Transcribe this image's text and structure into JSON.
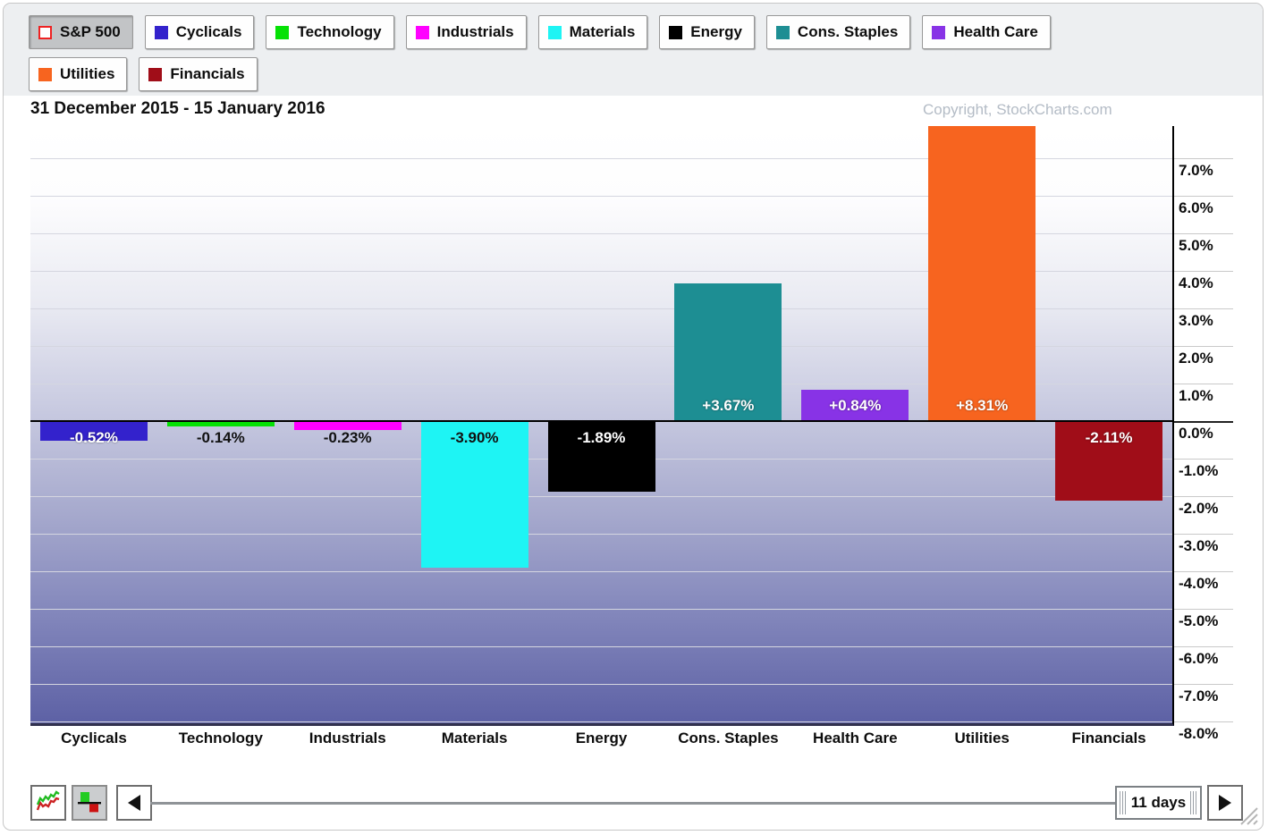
{
  "legend": {
    "rows": [
      [
        {
          "label": "S&P 500",
          "color": "#ffffff",
          "swatch_border": "#ee2222",
          "pressed": true
        },
        {
          "label": "Cyclicals",
          "color": "#3322cc",
          "pressed": false
        },
        {
          "label": "Technology",
          "color": "#05e105",
          "pressed": false
        },
        {
          "label": "Industrials",
          "color": "#ff00ff",
          "pressed": false
        },
        {
          "label": "Materials",
          "color": "#1ef4f4",
          "pressed": false
        },
        {
          "label": "Energy",
          "color": "#000000",
          "pressed": false
        },
        {
          "label": "Cons. Staples",
          "color": "#1d8e93",
          "pressed": false
        },
        {
          "label": "Health Care",
          "color": "#8833e6",
          "pressed": false
        }
      ],
      [
        {
          "label": "Utilities",
          "color": "#f7641f",
          "pressed": false
        },
        {
          "label": "Financials",
          "color": "#a00d18",
          "pressed": false
        }
      ]
    ]
  },
  "header": {
    "date_range": "31 December 2015 - 15 January 2016",
    "copyright": "Copyright, StockCharts.com"
  },
  "chart_data": {
    "type": "bar",
    "title": "31 December 2015 - 15 January 2016",
    "categories": [
      "Cyclicals",
      "Technology",
      "Industrials",
      "Materials",
      "Energy",
      "Cons. Staples",
      "Health Care",
      "Utilities",
      "Financials"
    ],
    "values": [
      -0.52,
      -0.14,
      -0.23,
      -3.9,
      -1.89,
      3.67,
      0.84,
      8.31,
      -2.11
    ],
    "bar_labels": [
      "-0.52%",
      "-0.14%",
      "-0.23%",
      "-3.90%",
      "-1.89%",
      "+3.67%",
      "+0.84%",
      "+8.31%",
      "-2.11%"
    ],
    "bar_colors": [
      "#3322cc",
      "#05e105",
      "#ff00ff",
      "#1ef4f4",
      "#000000",
      "#1d8e93",
      "#8833e6",
      "#f7641f",
      "#a00d18"
    ],
    "label_colors": [
      "#ffffff",
      "#111111",
      "#111111",
      "#111111",
      "#ffffff",
      "#ffffff",
      "#ffffff",
      "#ffffff",
      "#ffffff"
    ],
    "yticks": [
      {
        "pct": 7,
        "label": "7.0%"
      },
      {
        "pct": 6,
        "label": "6.0%"
      },
      {
        "pct": 5,
        "label": "5.0%"
      },
      {
        "pct": 4,
        "label": "4.0%"
      },
      {
        "pct": 3,
        "label": "3.0%"
      },
      {
        "pct": 2,
        "label": "2.0%"
      },
      {
        "pct": 1,
        "label": "1.0%"
      },
      {
        "pct": 0,
        "label": "0.0%"
      },
      {
        "pct": -1,
        "label": "-1.0%"
      },
      {
        "pct": -2,
        "label": "-2.0%"
      },
      {
        "pct": -3,
        "label": "-3.0%"
      },
      {
        "pct": -4,
        "label": "-4.0%"
      },
      {
        "pct": -5,
        "label": "-5.0%"
      },
      {
        "pct": -6,
        "label": "-6.0%"
      },
      {
        "pct": -7,
        "label": "-7.0%"
      },
      {
        "pct": -8,
        "label": "-8.0%"
      }
    ],
    "ylim": [
      -8.1,
      7.9
    ],
    "grid": true,
    "legend_position": "top",
    "axis_side": "right",
    "note_clipped": "Utilities bar exceeds top of plot area"
  },
  "toolbar": {
    "line_mode_icon": "line-chart-icon",
    "histogram_mode_icon": "histogram-icon",
    "left_arrow_icon": "left-arrow",
    "right_arrow_icon": "right-arrow",
    "days_label": "11 days"
  }
}
